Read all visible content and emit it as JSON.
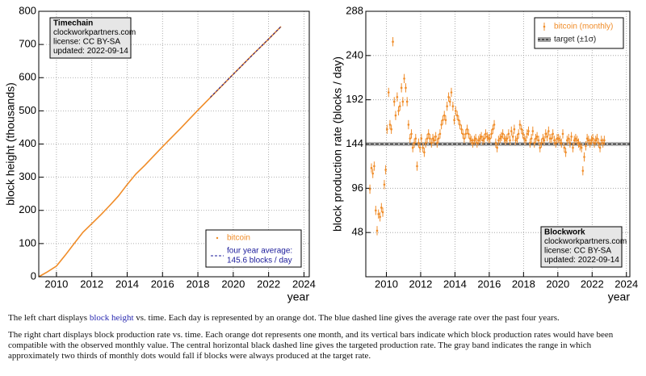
{
  "chart_data": [
    {
      "type": "line",
      "ylabel": "block height (thousands)",
      "xlabel": "year",
      "xlim": [
        2009,
        2024.3
      ],
      "ylim": [
        0,
        800
      ],
      "xticks": [
        2010,
        2012,
        2014,
        2016,
        2018,
        2020,
        2022,
        2024
      ],
      "yticks": [
        0,
        100,
        200,
        300,
        400,
        500,
        600,
        700,
        800
      ],
      "grid": true,
      "legend": "lower right",
      "info_corner": "upper left",
      "info": [
        "Timechain",
        "clockworkpartners.com",
        "license: CC BY-SA",
        "updated: 2022-09-14"
      ],
      "series": [
        {
          "name": "bitcoin",
          "color": "#f08c28",
          "style": "solid",
          "x": [
            2009,
            2009.5,
            2010,
            2010.5,
            2011,
            2011.5,
            2012,
            2012.5,
            2013,
            2013.5,
            2014,
            2014.5,
            2015,
            2015.5,
            2016,
            2016.5,
            2017,
            2017.5,
            2018,
            2018.5,
            2019,
            2019.5,
            2020,
            2020.5,
            2021,
            2021.5,
            2022,
            2022.7
          ],
          "values": [
            0,
            15,
            32,
            65,
            100,
            134,
            160,
            186,
            214,
            243,
            278,
            310,
            336,
            364,
            392,
            419,
            446,
            474,
            502,
            529,
            556,
            583,
            610,
            637,
            664,
            690,
            716,
            754
          ]
        },
        {
          "name": "four year average:",
          "note": "145.6 blocks / day",
          "color": "#1a1a9a",
          "style": "dashed",
          "x": [
            2018.7,
            2022.7
          ],
          "values": [
            541,
            754
          ]
        }
      ]
    },
    {
      "type": "scatter",
      "ylabel": "block production rate (blocks / day)",
      "xlabel": "year",
      "xlim": [
        2008.8,
        2024.2
      ],
      "ylim": [
        0,
        288
      ],
      "xticks": [
        2010,
        2012,
        2014,
        2016,
        2018,
        2020,
        2022,
        2024
      ],
      "yticks": [
        48,
        96,
        144,
        192,
        240,
        288
      ],
      "grid": true,
      "legend": "upper right",
      "info_corner": "lower right",
      "info": [
        "Blockwork",
        "clockworkpartners.com",
        "license: CC BY-SA",
        "updated: 2022-09-14"
      ],
      "target": {
        "name": "target (±1σ)",
        "value": 144,
        "sigma": 2.2,
        "color": "#a0a0a0"
      },
      "series": [
        {
          "name": "bitcoin (monthly)",
          "color": "#f08c28",
          "error": 5,
          "x": [
            2009.04,
            2009.13,
            2009.21,
            2009.29,
            2009.38,
            2009.46,
            2009.54,
            2009.63,
            2009.71,
            2009.79,
            2009.88,
            2009.96,
            2010.04,
            2010.13,
            2010.21,
            2010.29,
            2010.38,
            2010.46,
            2010.54,
            2010.63,
            2010.71,
            2010.79,
            2010.88,
            2010.96,
            2011.04,
            2011.13,
            2011.21,
            2011.29,
            2011.38,
            2011.46,
            2011.54,
            2011.63,
            2011.71,
            2011.79,
            2011.88,
            2011.96,
            2012.04,
            2012.13,
            2012.21,
            2012.29,
            2012.38,
            2012.46,
            2012.54,
            2012.63,
            2012.71,
            2012.79,
            2012.88,
            2012.96,
            2013.04,
            2013.13,
            2013.21,
            2013.29,
            2013.38,
            2013.46,
            2013.54,
            2013.63,
            2013.71,
            2013.79,
            2013.88,
            2013.96,
            2014.04,
            2014.13,
            2014.21,
            2014.29,
            2014.38,
            2014.46,
            2014.54,
            2014.63,
            2014.71,
            2014.79,
            2014.88,
            2014.96,
            2015.04,
            2015.13,
            2015.21,
            2015.29,
            2015.38,
            2015.46,
            2015.54,
            2015.63,
            2015.71,
            2015.79,
            2015.88,
            2015.96,
            2016.04,
            2016.13,
            2016.21,
            2016.29,
            2016.38,
            2016.46,
            2016.54,
            2016.63,
            2016.71,
            2016.79,
            2016.88,
            2016.96,
            2017.04,
            2017.13,
            2017.21,
            2017.29,
            2017.38,
            2017.46,
            2017.54,
            2017.63,
            2017.71,
            2017.79,
            2017.88,
            2017.96,
            2018.04,
            2018.13,
            2018.21,
            2018.29,
            2018.38,
            2018.46,
            2018.54,
            2018.63,
            2018.71,
            2018.79,
            2018.88,
            2018.96,
            2019.04,
            2019.13,
            2019.21,
            2019.29,
            2019.38,
            2019.46,
            2019.54,
            2019.63,
            2019.71,
            2019.79,
            2019.88,
            2019.96,
            2020.04,
            2020.13,
            2020.21,
            2020.29,
            2020.38,
            2020.46,
            2020.54,
            2020.63,
            2020.71,
            2020.79,
            2020.88,
            2020.96,
            2021.04,
            2021.13,
            2021.21,
            2021.29,
            2021.38,
            2021.46,
            2021.54,
            2021.63,
            2021.71,
            2021.79,
            2021.88,
            2021.96,
            2022.04,
            2022.13,
            2022.21,
            2022.29,
            2022.38,
            2022.46,
            2022.54,
            2022.63,
            2022.71
          ],
          "values": [
            95,
            118,
            112,
            120,
            72,
            50,
            68,
            65,
            75,
            70,
            100,
            116,
            160,
            200,
            165,
            160,
            255,
            190,
            175,
            195,
            180,
            185,
            205,
            190,
            215,
            205,
            190,
            165,
            150,
            155,
            140,
            145,
            150,
            120,
            145,
            140,
            150,
            140,
            135,
            145,
            150,
            155,
            150,
            145,
            150,
            148,
            152,
            145,
            150,
            155,
            165,
            170,
            175,
            170,
            185,
            195,
            190,
            200,
            185,
            170,
            180,
            175,
            170,
            165,
            160,
            155,
            150,
            155,
            160,
            155,
            150,
            148,
            145,
            148,
            150,
            145,
            148,
            150,
            152,
            148,
            150,
            155,
            152,
            150,
            150,
            155,
            160,
            165,
            145,
            140,
            148,
            150,
            152,
            155,
            150,
            148,
            150,
            155,
            148,
            158,
            152,
            160,
            148,
            150,
            155,
            165,
            160,
            155,
            150,
            148,
            155,
            158,
            145,
            150,
            158,
            145,
            150,
            152,
            148,
            140,
            145,
            150,
            148,
            155,
            152,
            158,
            150,
            150,
            155,
            148,
            145,
            150,
            150,
            148,
            145,
            155,
            140,
            135,
            148,
            150,
            145,
            152,
            140,
            148,
            150,
            148,
            145,
            142,
            140,
            115,
            130,
            142,
            150,
            148,
            145,
            148,
            150,
            145,
            148,
            150,
            145,
            140,
            148,
            145,
            148
          ]
        }
      ]
    }
  ],
  "captions": {
    "p1": [
      "The left chart displays ",
      "block height",
      " vs. time. Each day is represented by an orange dot. The blue dashed line gives the average rate over the past four years."
    ],
    "p2": "The right chart displays block production rate vs. time. Each orange dot represents one month, and its vertical bars indicate which block production rates would have been compatible with the observed monthly value. The central horizontal black dashed line gives the targeted production rate. The gray band indicates the range in which approximately two thirds of monthly dots would fall if blocks were always produced at the target rate."
  }
}
